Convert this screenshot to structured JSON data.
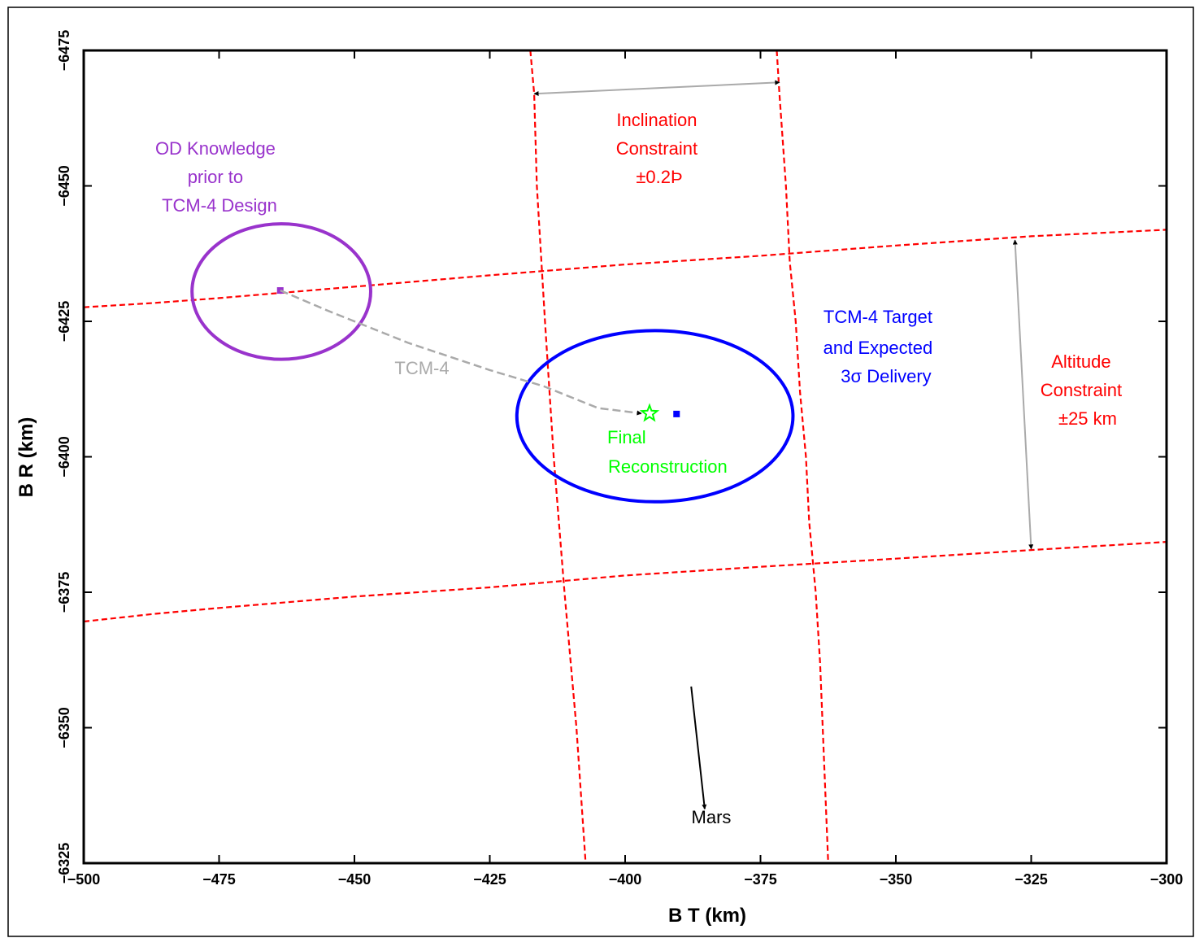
{
  "chart_data": {
    "type": "scatter",
    "xlabel": "B  T (km)",
    "ylabel": "B  R (km)",
    "xlim": [
      -500,
      -300
    ],
    "ylim": [
      -6325,
      -6475
    ],
    "x_ticks": [
      "−500",
      "−475",
      "−450",
      "−425",
      "−400",
      "−375",
      "−350",
      "−325",
      "−300"
    ],
    "y_ticks": [
      "−6475",
      "−6450",
      "−6425",
      "−6400",
      "−6375",
      "−6350",
      "−6325"
    ],
    "x_tick_values": [
      -500,
      -475,
      -450,
      -425,
      -400,
      -375,
      -350,
      -325,
      -300
    ],
    "y_tick_values": [
      -6475,
      -6450,
      -6425,
      -6400,
      -6375,
      -6350,
      -6325
    ],
    "grid": false,
    "colors": {
      "od_knowledge": "#9933cc",
      "target": "#0000ff",
      "final": "#00ff00",
      "constraint": "#ff0000",
      "tcm_arrow": "#aaaaaa",
      "mars_arrow": "#000000"
    },
    "series": [
      {
        "name": "OD Knowledge prior to TCM-4 Design",
        "kind": "ellipse",
        "center": [
          -463.5,
          -6430.5
        ],
        "semi_axes": [
          16.5,
          12.5
        ],
        "centroid": [
          -463.7,
          -6430.7
        ]
      },
      {
        "name": "TCM-4 Target and Expected 3σ Delivery",
        "kind": "ellipse",
        "center": [
          -394.5,
          -6407.5
        ],
        "semi_axes": [
          25.5,
          15.8
        ],
        "centroid": [
          -390.5,
          -6407.9
        ]
      },
      {
        "name": "Final Reconstruction",
        "kind": "star",
        "point": [
          -395.5,
          -6408.0
        ]
      },
      {
        "name": "Inclination Constraint ±0.2°",
        "kind": "band_lines",
        "lines": [
          [
            [
              -417.5,
              -6475.0
            ],
            [
              -416.8,
              -6467.0
            ],
            [
              -416.3,
              -6450.0
            ],
            [
              -414.8,
              -6425.0
            ],
            [
              -413.2,
              -6400.0
            ],
            [
              -411.2,
              -6375.0
            ],
            [
              -409.0,
              -6350.0
            ],
            [
              -407.3,
              -6325.0
            ]
          ],
          [
            [
              -372.0,
              -6475.0
            ],
            [
              -371.5,
              -6467.0
            ],
            [
              -370.3,
              -6450.0
            ],
            [
              -369.6,
              -6436.0
            ],
            [
              -368.5,
              -6425.0
            ],
            [
              -367.7,
              -6412.0
            ],
            [
              -366.6,
              -6400.0
            ],
            [
              -366.0,
              -6388.0
            ],
            [
              -364.8,
              -6375.0
            ],
            [
              -364.0,
              -6362.0
            ],
            [
              -362.5,
              -6325.0
            ]
          ]
        ]
      },
      {
        "name": "Altitude Constraint ±25 km",
        "kind": "band_lines",
        "lines": [
          [
            [
              -500.0,
              -6427.6
            ],
            [
              -487.0,
              -6428.4
            ],
            [
              -475.0,
              -6429.3
            ],
            [
              -450.0,
              -6431.4
            ],
            [
              -425.0,
              -6433.5
            ],
            [
              -400.0,
              -6435.5
            ],
            [
              -375.0,
              -6437.1
            ],
            [
              -350.0,
              -6439.0
            ],
            [
              -325.0,
              -6440.7
            ],
            [
              -300.0,
              -6441.9
            ]
          ],
          [
            [
              -500.0,
              -6369.6
            ],
            [
              -487.0,
              -6371.0
            ],
            [
              -475.0,
              -6372.1
            ],
            [
              -450.0,
              -6374.2
            ],
            [
              -425.0,
              -6375.9
            ],
            [
              -400.0,
              -6378.1
            ],
            [
              -375.0,
              -6379.7
            ],
            [
              -350.0,
              -6381.2
            ],
            [
              -325.0,
              -6382.8
            ],
            [
              -300.0,
              -6384.3
            ]
          ]
        ]
      },
      {
        "name": "TCM-4",
        "kind": "path_arrow",
        "points": [
          [
            -463.7,
            -6430.7
          ],
          [
            -455.0,
            -6427.0
          ],
          [
            -440.0,
            -6421.0
          ],
          [
            -425.0,
            -6416.0
          ],
          [
            -415.0,
            -6413.0
          ],
          [
            -405.0,
            -6409.0
          ],
          [
            -397.0,
            -6408.0
          ]
        ]
      },
      {
        "name": "Mars",
        "kind": "arrow",
        "from": [
          -387.8,
          -6357.6
        ],
        "to": [
          -385.3,
          -6335.0
        ]
      },
      {
        "name": "inclination_span",
        "kind": "double_arrow",
        "from": [
          -416.8,
          -6467.0
        ],
        "to": [
          -371.5,
          -6469.1
        ]
      },
      {
        "name": "altitude_span",
        "kind": "double_arrow",
        "from": [
          -328.0,
          -6440.0
        ],
        "to": [
          -325.0,
          -6383.0
        ]
      }
    ],
    "annotations": {
      "od_knowledge": [
        "OD Knowledge",
        "prior to",
        "TCM-4 Design"
      ],
      "inclination": [
        "Inclination",
        "Constraint",
        "±0.2Þ"
      ],
      "target": [
        "TCM-4 Target",
        "and Expected",
        "3σ Delivery"
      ],
      "altitude": [
        "Altitude",
        "Constraint",
        "±25  km"
      ],
      "tcm4": "TCM-4",
      "final": [
        "Final",
        "Reconstruction"
      ],
      "mars": "Mars"
    }
  }
}
